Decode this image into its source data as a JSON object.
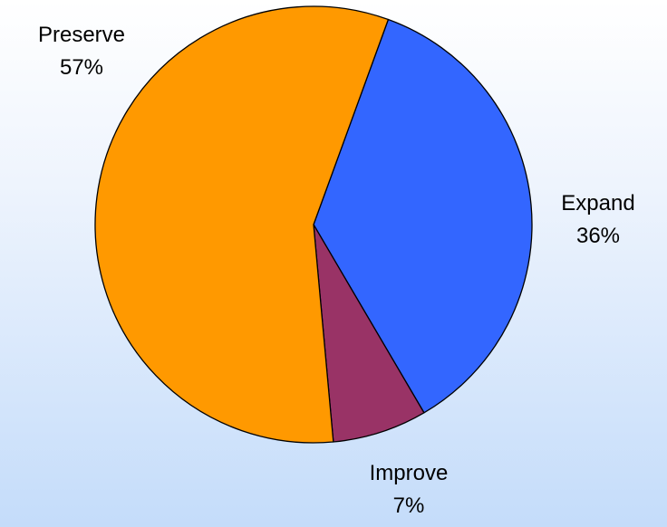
{
  "chart_data": {
    "type": "pie",
    "title": "",
    "slices": [
      {
        "label": "Expand",
        "percent_label": "36%",
        "value": 36,
        "color": "#3366ff"
      },
      {
        "label": "Improve",
        "percent_label": "7%",
        "value": 7,
        "color": "#993366"
      },
      {
        "label": "Preserve",
        "percent_label": "57%",
        "value": 57,
        "color": "#ff9900"
      }
    ],
    "start_angle_deg": 20,
    "direction": "clockwise",
    "legend": "none",
    "labels": "outside, category name above percentage"
  }
}
